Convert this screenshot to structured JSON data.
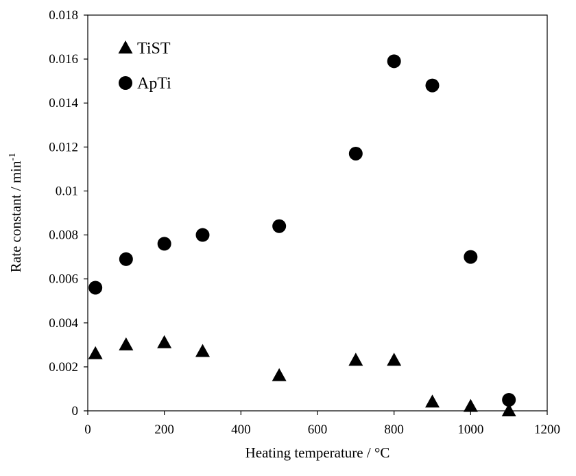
{
  "chart_data": {
    "type": "scatter",
    "title": "",
    "xlabel": "Heating temperature / °C",
    "ylabel_main": "Rate constant / min",
    "ylabel_sup": "-1",
    "xlim": [
      0,
      1200
    ],
    "ylim": [
      0,
      0.018
    ],
    "xticks": [
      0,
      200,
      400,
      600,
      800,
      1000,
      1200
    ],
    "xtick_labels": [
      "0",
      "200",
      "400",
      "600",
      "800",
      "1000",
      "1200"
    ],
    "yticks": [
      0,
      0.002,
      0.004,
      0.006,
      0.008,
      0.01,
      0.012,
      0.014,
      0.016,
      0.018
    ],
    "ytick_labels": [
      "0",
      "0.002",
      "0.004",
      "0.006",
      "0.008",
      "0.01",
      "0.012",
      "0.014",
      "0.016",
      "0.018"
    ],
    "grid": false,
    "legend_position": "top-left",
    "series": [
      {
        "name": "TiST",
        "marker": "triangle",
        "color": "#000000",
        "points": [
          {
            "x": 20,
            "y": 0.0026
          },
          {
            "x": 100,
            "y": 0.003
          },
          {
            "x": 200,
            "y": 0.0031
          },
          {
            "x": 300,
            "y": 0.0027
          },
          {
            "x": 500,
            "y": 0.0016
          },
          {
            "x": 700,
            "y": 0.0023
          },
          {
            "x": 800,
            "y": 0.0023
          },
          {
            "x": 900,
            "y": 0.0004
          },
          {
            "x": 1000,
            "y": 0.0002
          },
          {
            "x": 1100,
            "y": 0.0
          }
        ]
      },
      {
        "name": "ApTi",
        "marker": "circle",
        "color": "#000000",
        "points": [
          {
            "x": 20,
            "y": 0.0056
          },
          {
            "x": 100,
            "y": 0.0069
          },
          {
            "x": 200,
            "y": 0.0076
          },
          {
            "x": 300,
            "y": 0.008
          },
          {
            "x": 500,
            "y": 0.0084
          },
          {
            "x": 700,
            "y": 0.0117
          },
          {
            "x": 800,
            "y": 0.0159
          },
          {
            "x": 900,
            "y": 0.0148
          },
          {
            "x": 1000,
            "y": 0.007
          },
          {
            "x": 1100,
            "y": 0.0005
          }
        ]
      }
    ]
  }
}
